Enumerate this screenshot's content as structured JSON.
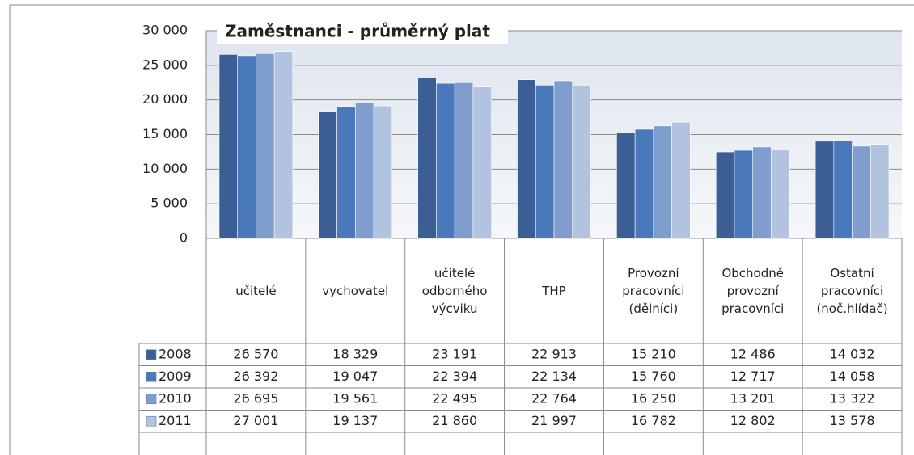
{
  "chart_data": {
    "type": "bar",
    "title": "Zaměstnanci - průměrný plat",
    "categories": [
      "učitelé",
      "vychovatel",
      "učitelé odborného výcviku",
      "THP",
      "Provozní pracovníci (dělníci)",
      "Obchodně provozní pracovníci",
      "Ostatní pracovníci (noč.hlídač)"
    ],
    "series": [
      {
        "name": "2008",
        "color": "#3b5f94",
        "values": [
          26570,
          18329,
          23191,
          22913,
          15210,
          12486,
          14032
        ],
        "value_labels": [
          "26 570",
          "18 329",
          "23 191",
          "22 913",
          "15 210",
          "12 486",
          "14 032"
        ]
      },
      {
        "name": "2009",
        "color": "#4a79bb",
        "values": [
          26392,
          19047,
          22394,
          22134,
          15760,
          12717,
          14058
        ],
        "value_labels": [
          "26 392",
          "19 047",
          "22 394",
          "22 134",
          "15 760",
          "12 717",
          "14 058"
        ]
      },
      {
        "name": "2010",
        "color": "#7f9dcd",
        "values": [
          26695,
          19561,
          22495,
          22764,
          16250,
          13201,
          13322
        ],
        "value_labels": [
          "26 695",
          "19 561",
          "22 495",
          "22 764",
          "16 250",
          "13 201",
          "13 322"
        ]
      },
      {
        "name": "2011",
        "color": "#b2c3e0",
        "values": [
          27001,
          19137,
          21860,
          21997,
          16782,
          12802,
          13578
        ],
        "value_labels": [
          "27 001",
          "19 137",
          "21 860",
          "21 997",
          "16 782",
          "12 802",
          "13 578"
        ]
      }
    ],
    "ylim": [
      0,
      30000
    ],
    "yticks": [
      0,
      {
        "value": 5000,
        "label": "5 000"
      },
      {
        "value": 10000,
        "label": "10 000"
      },
      {
        "value": 15000,
        "label": "15 000"
      },
      {
        "value": 20000,
        "label": "20 000"
      },
      {
        "value": 25000,
        "label": "25 000"
      },
      {
        "value": 30000,
        "label": "30 000"
      }
    ],
    "grid": true
  }
}
